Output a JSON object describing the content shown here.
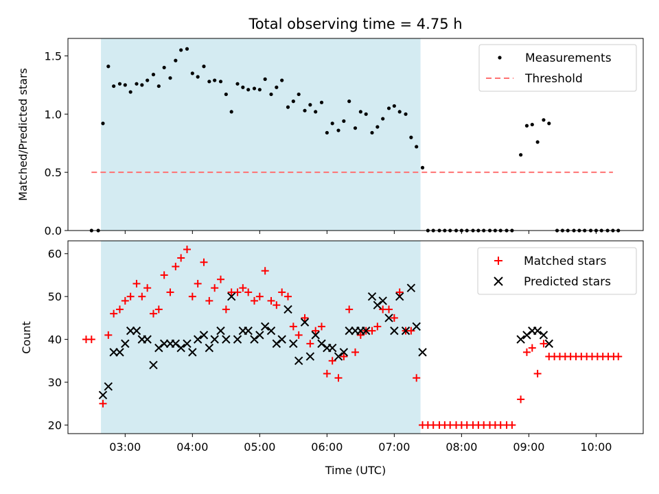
{
  "colors": {
    "shade": "#add8e6",
    "measurement": "#000000",
    "threshold": "#ff7070",
    "matched": "#ff0000",
    "predicted": "#000000"
  },
  "chart_data": [
    {
      "type": "scatter",
      "title": "Total observing time = 4.75 h",
      "ylabel": "Matched/Predicted stars",
      "xlabel": "",
      "x_unit": "hours UTC",
      "xlim": [
        2.15,
        10.7
      ],
      "ylim": [
        0,
        1.65
      ],
      "yticks": [
        0.0,
        0.5,
        1.0,
        1.5
      ],
      "ytick_labels": [
        "0.0",
        "0.5",
        "1.0",
        "1.5"
      ],
      "grid": false,
      "legend": "top-right",
      "shaded_span": [
        2.64,
        7.39
      ],
      "series": [
        {
          "name": "Measurements",
          "marker": "dot",
          "points": [
            [
              2.5,
              0.0
            ],
            [
              2.6,
              0.0
            ],
            [
              2.67,
              0.92
            ],
            [
              2.75,
              1.41
            ],
            [
              2.83,
              1.24
            ],
            [
              2.92,
              1.26
            ],
            [
              3.0,
              1.25
            ],
            [
              3.08,
              1.19
            ],
            [
              3.17,
              1.26
            ],
            [
              3.25,
              1.25
            ],
            [
              3.33,
              1.29
            ],
            [
              3.42,
              1.34
            ],
            [
              3.5,
              1.24
            ],
            [
              3.58,
              1.4
            ],
            [
              3.67,
              1.31
            ],
            [
              3.75,
              1.46
            ],
            [
              3.83,
              1.55
            ],
            [
              3.92,
              1.56
            ],
            [
              4.0,
              1.35
            ],
            [
              4.08,
              1.32
            ],
            [
              4.17,
              1.41
            ],
            [
              4.25,
              1.28
            ],
            [
              4.33,
              1.29
            ],
            [
              4.42,
              1.28
            ],
            [
              4.5,
              1.17
            ],
            [
              4.58,
              1.02
            ],
            [
              4.67,
              1.26
            ],
            [
              4.75,
              1.23
            ],
            [
              4.83,
              1.21
            ],
            [
              4.92,
              1.22
            ],
            [
              5.0,
              1.21
            ],
            [
              5.08,
              1.3
            ],
            [
              5.17,
              1.17
            ],
            [
              5.25,
              1.23
            ],
            [
              5.33,
              1.29
            ],
            [
              5.42,
              1.06
            ],
            [
              5.5,
              1.11
            ],
            [
              5.58,
              1.17
            ],
            [
              5.67,
              1.03
            ],
            [
              5.75,
              1.08
            ],
            [
              5.83,
              1.02
            ],
            [
              5.92,
              1.1
            ],
            [
              6.0,
              0.84
            ],
            [
              6.08,
              0.92
            ],
            [
              6.17,
              0.86
            ],
            [
              6.25,
              0.94
            ],
            [
              6.33,
              1.11
            ],
            [
              6.42,
              0.88
            ],
            [
              6.5,
              1.02
            ],
            [
              6.58,
              1.0
            ],
            [
              6.67,
              0.84
            ],
            [
              6.75,
              0.89
            ],
            [
              6.83,
              0.96
            ],
            [
              6.92,
              1.05
            ],
            [
              7.0,
              1.07
            ],
            [
              7.08,
              1.02
            ],
            [
              7.17,
              1.0
            ],
            [
              7.25,
              0.8
            ],
            [
              7.33,
              0.72
            ],
            [
              7.42,
              0.54
            ],
            [
              7.5,
              0.0
            ],
            [
              7.58,
              0.0
            ],
            [
              7.67,
              0.0
            ],
            [
              7.75,
              0.0
            ],
            [
              7.83,
              0.0
            ],
            [
              7.92,
              0.0
            ],
            [
              8.0,
              0.0
            ],
            [
              8.08,
              0.0
            ],
            [
              8.17,
              0.0
            ],
            [
              8.25,
              0.0
            ],
            [
              8.33,
              0.0
            ],
            [
              8.42,
              0.0
            ],
            [
              8.5,
              0.0
            ],
            [
              8.58,
              0.0
            ],
            [
              8.67,
              0.0
            ],
            [
              8.75,
              0.0
            ],
            [
              8.88,
              0.65
            ],
            [
              8.97,
              0.9
            ],
            [
              9.05,
              0.91
            ],
            [
              9.13,
              0.76
            ],
            [
              9.22,
              0.95
            ],
            [
              9.3,
              0.92
            ],
            [
              9.42,
              0.0
            ],
            [
              9.5,
              0.0
            ],
            [
              9.58,
              0.0
            ],
            [
              9.67,
              0.0
            ],
            [
              9.75,
              0.0
            ],
            [
              9.83,
              0.0
            ],
            [
              9.92,
              0.0
            ],
            [
              10.0,
              0.0
            ],
            [
              10.08,
              0.0
            ],
            [
              10.17,
              0.0
            ],
            [
              10.25,
              0.0
            ],
            [
              10.33,
              0.0
            ]
          ]
        },
        {
          "name": "Threshold",
          "marker": "dashed-line",
          "points": [
            [
              2.5,
              0.5
            ],
            [
              10.25,
              0.5
            ]
          ]
        }
      ]
    },
    {
      "type": "scatter",
      "title": "",
      "ylabel": "Count",
      "xlabel": "Time (UTC)",
      "x_unit": "hours UTC",
      "xlim": [
        2.15,
        10.7
      ],
      "ylim": [
        18,
        63
      ],
      "yticks": [
        20,
        30,
        40,
        50,
        60
      ],
      "ytick_labels": [
        "20",
        "30",
        "40",
        "50",
        "60"
      ],
      "xticks": [
        3,
        4,
        5,
        6,
        7,
        8,
        9,
        10
      ],
      "xtick_labels": [
        "03:00",
        "04:00",
        "05:00",
        "06:00",
        "07:00",
        "08:00",
        "09:00",
        "10:00"
      ],
      "grid": false,
      "legend": "top-right",
      "shaded_span": [
        2.64,
        7.39
      ],
      "series": [
        {
          "name": "Matched stars",
          "marker": "plus",
          "points": [
            [
              2.42,
              40
            ],
            [
              2.5,
              40
            ],
            [
              2.67,
              25
            ],
            [
              2.75,
              41
            ],
            [
              2.83,
              46
            ],
            [
              2.92,
              47
            ],
            [
              3.0,
              49
            ],
            [
              3.08,
              50
            ],
            [
              3.17,
              53
            ],
            [
              3.25,
              50
            ],
            [
              3.33,
              52
            ],
            [
              3.42,
              46
            ],
            [
              3.5,
              47
            ],
            [
              3.58,
              55
            ],
            [
              3.67,
              51
            ],
            [
              3.75,
              57
            ],
            [
              3.83,
              59
            ],
            [
              3.92,
              61
            ],
            [
              4.0,
              50
            ],
            [
              4.08,
              53
            ],
            [
              4.17,
              58
            ],
            [
              4.25,
              49
            ],
            [
              4.33,
              52
            ],
            [
              4.42,
              54
            ],
            [
              4.5,
              47
            ],
            [
              4.58,
              51
            ],
            [
              4.67,
              51
            ],
            [
              4.75,
              52
            ],
            [
              4.83,
              51
            ],
            [
              4.92,
              49
            ],
            [
              5.0,
              50
            ],
            [
              5.08,
              56
            ],
            [
              5.17,
              49
            ],
            [
              5.25,
              48
            ],
            [
              5.33,
              51
            ],
            [
              5.42,
              50
            ],
            [
              5.5,
              43
            ],
            [
              5.58,
              41
            ],
            [
              5.67,
              45
            ],
            [
              5.75,
              39
            ],
            [
              5.83,
              42
            ],
            [
              5.92,
              43
            ],
            [
              6.0,
              32
            ],
            [
              6.08,
              35
            ],
            [
              6.17,
              31
            ],
            [
              6.25,
              36
            ],
            [
              6.33,
              47
            ],
            [
              6.42,
              37
            ],
            [
              6.5,
              41
            ],
            [
              6.58,
              42
            ],
            [
              6.67,
              42
            ],
            [
              6.75,
              43
            ],
            [
              6.83,
              47
            ],
            [
              6.92,
              47
            ],
            [
              7.0,
              45
            ],
            [
              7.08,
              51
            ],
            [
              7.17,
              42
            ],
            [
              7.25,
              42
            ],
            [
              7.33,
              31
            ],
            [
              7.42,
              20
            ],
            [
              7.5,
              20
            ],
            [
              7.58,
              20
            ],
            [
              7.67,
              20
            ],
            [
              7.75,
              20
            ],
            [
              7.83,
              20
            ],
            [
              7.92,
              20
            ],
            [
              8.0,
              20
            ],
            [
              8.08,
              20
            ],
            [
              8.17,
              20
            ],
            [
              8.25,
              20
            ],
            [
              8.33,
              20
            ],
            [
              8.42,
              20
            ],
            [
              8.5,
              20
            ],
            [
              8.58,
              20
            ],
            [
              8.67,
              20
            ],
            [
              8.75,
              20
            ],
            [
              8.88,
              26
            ],
            [
              8.97,
              37
            ],
            [
              9.05,
              38
            ],
            [
              9.13,
              32
            ],
            [
              9.22,
              39
            ],
            [
              9.3,
              36
            ],
            [
              9.38,
              36
            ],
            [
              9.46,
              36
            ],
            [
              9.54,
              36
            ],
            [
              9.62,
              36
            ],
            [
              9.7,
              36
            ],
            [
              9.78,
              36
            ],
            [
              9.86,
              36
            ],
            [
              9.94,
              36
            ],
            [
              10.02,
              36
            ],
            [
              10.1,
              36
            ],
            [
              10.18,
              36
            ],
            [
              10.26,
              36
            ],
            [
              10.33,
              36
            ]
          ]
        },
        {
          "name": "Predicted stars",
          "marker": "cross",
          "points": [
            [
              2.67,
              27
            ],
            [
              2.75,
              29
            ],
            [
              2.83,
              37
            ],
            [
              2.92,
              37
            ],
            [
              3.0,
              39
            ],
            [
              3.08,
              42
            ],
            [
              3.17,
              42
            ],
            [
              3.25,
              40
            ],
            [
              3.33,
              40
            ],
            [
              3.42,
              34
            ],
            [
              3.5,
              38
            ],
            [
              3.58,
              39
            ],
            [
              3.67,
              39
            ],
            [
              3.75,
              39
            ],
            [
              3.83,
              38
            ],
            [
              3.92,
              39
            ],
            [
              4.0,
              37
            ],
            [
              4.08,
              40
            ],
            [
              4.17,
              41
            ],
            [
              4.25,
              38
            ],
            [
              4.33,
              40
            ],
            [
              4.42,
              42
            ],
            [
              4.5,
              40
            ],
            [
              4.58,
              50
            ],
            [
              4.67,
              40
            ],
            [
              4.75,
              42
            ],
            [
              4.83,
              42
            ],
            [
              4.92,
              40
            ],
            [
              5.0,
              41
            ],
            [
              5.08,
              43
            ],
            [
              5.17,
              42
            ],
            [
              5.25,
              39
            ],
            [
              5.33,
              40
            ],
            [
              5.42,
              47
            ],
            [
              5.5,
              39
            ],
            [
              5.58,
              35
            ],
            [
              5.67,
              44
            ],
            [
              5.75,
              36
            ],
            [
              5.83,
              41
            ],
            [
              5.92,
              39
            ],
            [
              6.0,
              38
            ],
            [
              6.08,
              38
            ],
            [
              6.17,
              36
            ],
            [
              6.25,
              37
            ],
            [
              6.33,
              42
            ],
            [
              6.42,
              42
            ],
            [
              6.5,
              42
            ],
            [
              6.58,
              42
            ],
            [
              6.67,
              50
            ],
            [
              6.75,
              48
            ],
            [
              6.83,
              49
            ],
            [
              6.92,
              45
            ],
            [
              7.0,
              42
            ],
            [
              7.08,
              50
            ],
            [
              7.17,
              42
            ],
            [
              7.25,
              52
            ],
            [
              7.33,
              43
            ],
            [
              7.42,
              37
            ],
            [
              8.88,
              40
            ],
            [
              8.97,
              41
            ],
            [
              9.05,
              42
            ],
            [
              9.13,
              42
            ],
            [
              9.22,
              41
            ],
            [
              9.3,
              39
            ]
          ]
        }
      ]
    }
  ]
}
